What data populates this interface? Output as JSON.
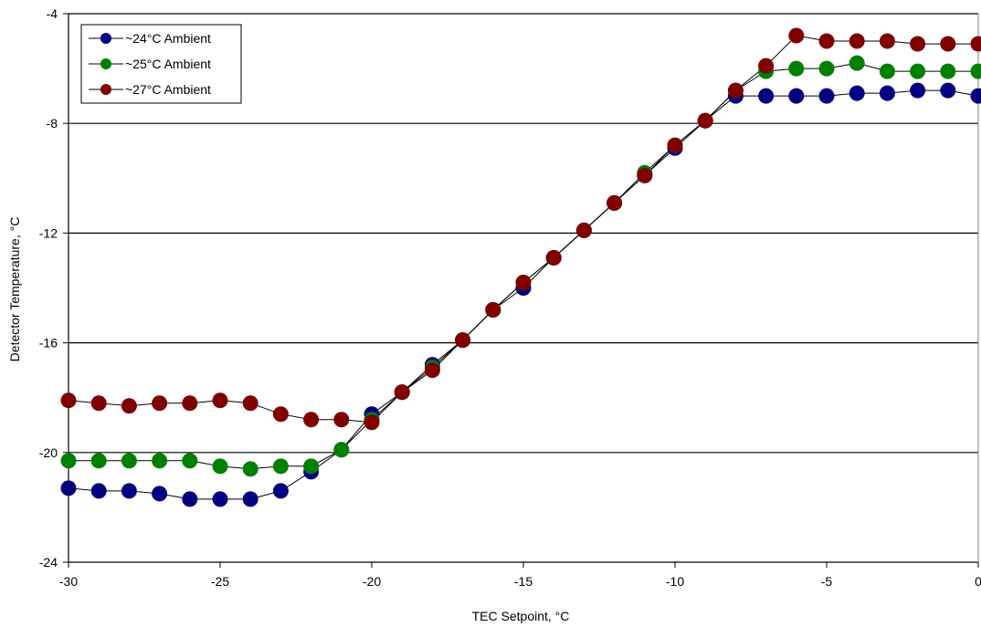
{
  "chart_data": {
    "type": "line",
    "title": "",
    "xlabel": "TEC Setpoint, °C",
    "ylabel": "Detector Temperature, °C",
    "xlim": [
      -30,
      0
    ],
    "ylim": [
      -24,
      -4
    ],
    "xticks": [
      -30,
      -25,
      -20,
      -15,
      -10,
      -5,
      0
    ],
    "yticks": [
      -4,
      -8,
      -12,
      -16,
      -20,
      -24
    ],
    "grid": "horizontal",
    "legend_position": "top-left",
    "x": [
      -30,
      -29,
      -28,
      -27,
      -26,
      -25,
      -24,
      -23,
      -22,
      -21,
      -20,
      -19,
      -18,
      -17,
      -16,
      -15,
      -14,
      -13,
      -12,
      -11,
      -10,
      -9,
      -8,
      -7,
      -6,
      -5,
      -4,
      -3,
      -2,
      -1,
      0
    ],
    "series": [
      {
        "name": "~24°C Ambient",
        "color": "#000080",
        "values": [
          -21.3,
          -21.4,
          -21.4,
          -21.5,
          -21.7,
          -21.7,
          -21.7,
          -21.4,
          -20.7,
          -19.9,
          -18.6,
          -17.8,
          -16.8,
          -15.9,
          -14.8,
          -14.0,
          -12.9,
          -11.9,
          -10.9,
          -9.9,
          -8.9,
          -7.9,
          -7.0,
          -7.0,
          -7.0,
          -7.0,
          -6.9,
          -6.9,
          -6.8,
          -6.8,
          -7.0
        ]
      },
      {
        "name": "~25°C Ambient",
        "color": "#008000",
        "values": [
          -20.3,
          -20.3,
          -20.3,
          -20.3,
          -20.3,
          -20.5,
          -20.6,
          -20.5,
          -20.5,
          -19.9,
          -18.8,
          -17.8,
          -16.9,
          -15.9,
          -14.8,
          -13.8,
          -12.9,
          -11.9,
          -10.9,
          -9.8,
          -8.8,
          -7.9,
          -6.8,
          -6.1,
          -6.0,
          -6.0,
          -5.8,
          -6.1,
          -6.1,
          -6.1,
          -6.1
        ]
      },
      {
        "name": "~27°C Ambient",
        "color": "#800000",
        "values": [
          -18.1,
          -18.2,
          -18.3,
          -18.2,
          -18.2,
          -18.1,
          -18.2,
          -18.6,
          -18.8,
          -18.8,
          -18.9,
          -17.8,
          -17.0,
          -15.9,
          -14.8,
          -13.8,
          -12.9,
          -11.9,
          -10.9,
          -9.9,
          -8.8,
          -7.9,
          -6.8,
          -5.9,
          -4.8,
          -5.0,
          -5.0,
          -5.0,
          -5.1,
          -5.1,
          -5.1
        ]
      }
    ]
  }
}
